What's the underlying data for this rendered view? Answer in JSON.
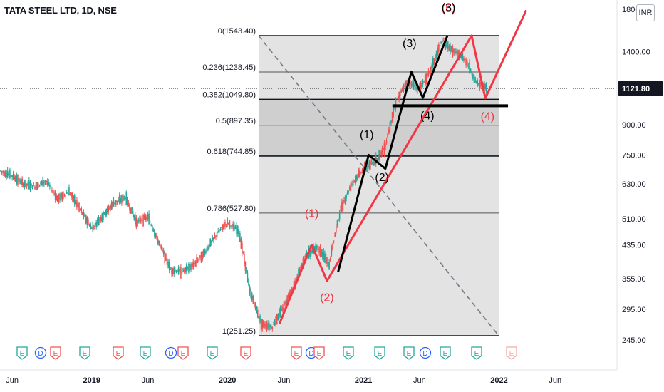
{
  "header": {
    "title": "TATA STEEL LTD, 1D, NSE",
    "currency": "INR"
  },
  "price_axis": {
    "top_label": "1800.00",
    "ticks": [
      "1400.00",
      "900.00",
      "750.00",
      "630.00",
      "510.00",
      "435.00",
      "355.00",
      "295.00",
      "245.00"
    ],
    "tick_values": [
      1400,
      900,
      750,
      630,
      510,
      435,
      355,
      295,
      245
    ],
    "current_price_label": "1121.80",
    "current_price": 1121.8,
    "current_badge_color": "#131722"
  },
  "time_axis": {
    "labels": [
      "Jun",
      "2019",
      "Jun",
      "2020",
      "Jun",
      "2021",
      "Jun",
      "2022",
      "Jun"
    ],
    "dates": [
      "2018-06-01",
      "2019-01-01",
      "2019-06-01",
      "2020-01-01",
      "2020-06-01",
      "2021-01-01",
      "2021-06-01",
      "2022-01-01",
      "2022-06-01"
    ],
    "bold": [
      false,
      true,
      false,
      true,
      false,
      true,
      false,
      true,
      false
    ]
  },
  "fibonacci": {
    "levels": [
      {
        "label": "0(1543.40)",
        "value": 1543.4
      },
      {
        "label": "0.236(1238.45)",
        "value": 1238.45
      },
      {
        "label": "0.382(1049.80)",
        "value": 1049.8
      },
      {
        "label": "0.5(897.35)",
        "value": 897.35
      },
      {
        "label": "0.618(744.85)",
        "value": 744.85
      },
      {
        "label": "0.786(527.80)",
        "value": 527.8
      },
      {
        "label": "1(251.25)",
        "value": 251.25
      }
    ],
    "start_date": "2020-03-25",
    "end_date": "2021-12-31",
    "fill_color": "#e3e3e3",
    "band_fill_color": "#cfcfcf"
  },
  "wave_labels": {
    "red": [
      "(1)",
      "(2)",
      "(4)",
      "(5)"
    ],
    "black": [
      "(1)",
      "(2)",
      "(3)",
      "(4)",
      "(3)"
    ]
  },
  "events": [
    {
      "letter": "E",
      "type": "earnings"
    },
    {
      "letter": "D",
      "type": "dividend"
    },
    {
      "letter": "E",
      "type": "earnings-red"
    },
    {
      "letter": "E",
      "type": "earnings"
    },
    {
      "letter": "E",
      "type": "earnings-red"
    },
    {
      "letter": "E",
      "type": "earnings"
    },
    {
      "letter": "D",
      "type": "dividend"
    },
    {
      "letter": "E",
      "type": "earnings-red"
    },
    {
      "letter": "E",
      "type": "earnings"
    },
    {
      "letter": "E",
      "type": "earnings-red"
    },
    {
      "letter": "E",
      "type": "earnings-red"
    },
    {
      "letter": "D",
      "type": "dividend"
    },
    {
      "letter": "E",
      "type": "earnings-red"
    },
    {
      "letter": "E",
      "type": "earnings"
    },
    {
      "letter": "E",
      "type": "earnings"
    },
    {
      "letter": "E",
      "type": "earnings"
    },
    {
      "letter": "D",
      "type": "dividend"
    },
    {
      "letter": "E",
      "type": "earnings"
    },
    {
      "letter": "E",
      "type": "earnings"
    },
    {
      "letter": "E",
      "type": "future"
    }
  ],
  "chart_data": {
    "type": "line",
    "title": "TATA STEEL LTD, 1D, NSE",
    "xlabel": "",
    "ylabel": "",
    "y_scale": "log",
    "ylim": [
      230,
      1800
    ],
    "series": [
      {
        "values": [
          [
            "2018-05-01",
            680
          ],
          [
            "2018-06-01",
            660
          ],
          [
            "2018-07-01",
            630
          ],
          [
            "2018-08-01",
            620
          ],
          [
            "2018-09-01",
            640
          ],
          [
            "2018-10-01",
            575
          ],
          [
            "2018-11-01",
            600
          ],
          [
            "2018-12-01",
            540
          ],
          [
            "2019-01-01",
            480
          ],
          [
            "2019-02-01",
            520
          ],
          [
            "2019-03-01",
            560
          ],
          [
            "2019-04-01",
            580
          ],
          [
            "2019-05-01",
            500
          ],
          [
            "2019-06-01",
            515
          ],
          [
            "2019-07-01",
            440
          ],
          [
            "2019-08-01",
            375
          ],
          [
            "2019-09-01",
            370
          ],
          [
            "2019-10-01",
            385
          ],
          [
            "2019-11-01",
            415
          ],
          [
            "2019-12-01",
            460
          ],
          [
            "2020-01-01",
            500
          ],
          [
            "2020-02-01",
            470
          ],
          [
            "2020-03-01",
            330
          ],
          [
            "2020-04-01",
            270
          ],
          [
            "2020-05-01",
            265
          ],
          [
            "2020-06-01",
            300
          ],
          [
            "2020-07-01",
            345
          ],
          [
            "2020-08-01",
            410
          ],
          [
            "2020-09-01",
            430
          ],
          [
            "2020-10-01",
            385
          ],
          [
            "2020-11-01",
            540
          ],
          [
            "2020-12-01",
            630
          ],
          [
            "2021-01-01",
            690
          ],
          [
            "2021-02-01",
            720
          ],
          [
            "2021-03-01",
            790
          ],
          [
            "2021-04-01",
            1050
          ],
          [
            "2021-05-01",
            1170
          ],
          [
            "2021-06-01",
            1120
          ],
          [
            "2021-07-01",
            1250
          ],
          [
            "2021-08-01",
            1500
          ],
          [
            "2021-09-01",
            1400
          ],
          [
            "2021-10-01",
            1340
          ],
          [
            "2021-11-01",
            1160
          ],
          [
            "2021-12-01",
            1121.8
          ]
        ]
      }
    ],
    "fib_retracement_high": 1543.4,
    "fib_retracement_low": 251.25,
    "red_wave_path": [
      [
        "2020-05-20",
        270
      ],
      [
        "2020-08-15",
        435
      ],
      [
        "2020-09-25",
        350
      ],
      [
        "2021-10-19",
        1543.4
      ],
      [
        "2021-11-25",
        1057
      ],
      [
        "2022-03-15",
        1800
      ]
    ],
    "black_wave_path": [
      [
        "2020-10-25",
        370
      ],
      [
        "2021-01-15",
        750
      ],
      [
        "2021-03-01",
        690
      ],
      [
        "2021-05-10",
        1240
      ],
      [
        "2021-06-10",
        1060
      ],
      [
        "2021-08-15",
        1543.4
      ]
    ],
    "support_line": [
      [
        "2021-03-20",
        1010
      ],
      [
        "2022-01-25",
        1010
      ]
    ],
    "wave_label_positions": {
      "red": [
        [
          "2020-08-15",
          515
        ],
        [
          "2020-09-25",
          310
        ],
        [
          "2021-12-01",
          925
        ],
        [
          "2021-08-18",
          1780
        ]
      ],
      "black": [
        [
          "2021-01-10",
          830
        ],
        [
          "2021-02-20",
          640
        ],
        [
          "2021-05-05",
          1440
        ],
        [
          "2021-06-22",
          930
        ],
        [
          "2021-08-18",
          1790
        ]
      ]
    },
    "diagonal_trendline": [
      [
        "2020-03-25",
        1543.4
      ],
      [
        "2021-12-31",
        251.25
      ]
    ],
    "colors": {
      "candles_up": "#26a69a",
      "candles_down": "#ef5350",
      "red_wave": "#f23645",
      "black_wave": "#000000"
    }
  }
}
